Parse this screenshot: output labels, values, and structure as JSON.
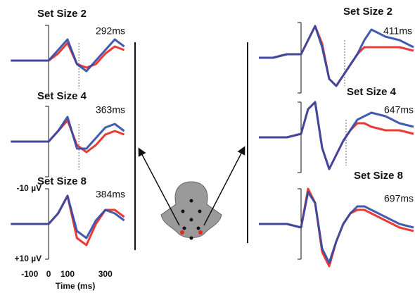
{
  "chart_data": [
    {
      "type": "line",
      "title": "Set Size 2",
      "annotation": "292ms",
      "reference_line": 160,
      "x": [
        -200,
        -150,
        -100,
        -50,
        0,
        50,
        100,
        150,
        200,
        250,
        300,
        350,
        400
      ],
      "series": [
        {
          "color": "#e8261f",
          "values": [
            0,
            0,
            0,
            0,
            0,
            -2,
            -5,
            1,
            2,
            1,
            -2,
            -4,
            -3
          ]
        },
        {
          "color": "#2e49a8",
          "values": [
            0,
            0,
            0,
            0,
            0,
            -3,
            -6,
            1,
            3,
            0,
            -3,
            -6,
            -4
          ]
        }
      ],
      "xlim": [
        -220,
        420
      ],
      "ylim": [
        10,
        -10
      ]
    },
    {
      "type": "line",
      "title": "Set Size 4",
      "annotation": "363ms",
      "reference_line": 160,
      "x": [
        -200,
        -150,
        -100,
        -50,
        0,
        50,
        100,
        150,
        200,
        250,
        300,
        350,
        400
      ],
      "series": [
        {
          "color": "#e8261f",
          "values": [
            0,
            0,
            0,
            0,
            0,
            -3,
            -6,
            1,
            3,
            1,
            -2,
            -3,
            -2
          ]
        },
        {
          "color": "#2e49a8",
          "values": [
            0,
            0,
            0,
            0,
            0,
            -3,
            -7,
            2,
            2,
            -1,
            -4,
            -5,
            -3
          ]
        }
      ],
      "xlim": [
        -220,
        420
      ],
      "ylim": [
        10,
        -10
      ]
    },
    {
      "type": "line",
      "title": "Set Size 8",
      "annotation": "384ms",
      "x": [
        -200,
        -150,
        -100,
        -50,
        0,
        50,
        100,
        150,
        200,
        250,
        300,
        350,
        400
      ],
      "series": [
        {
          "color": "#e8261f",
          "values": [
            0,
            0,
            0,
            0,
            0,
            -3,
            -8,
            4,
            6,
            0,
            -4,
            -4,
            -2
          ]
        },
        {
          "color": "#2e49a8",
          "values": [
            0,
            0,
            0,
            0,
            0,
            -3,
            -8,
            2,
            4,
            -1,
            -4,
            -3,
            -1
          ]
        }
      ],
      "xlim": [
        -220,
        420
      ],
      "ylim": [
        10,
        -10
      ],
      "xticks": [
        -100,
        0,
        100,
        300
      ],
      "xlabel": "Time (ms)",
      "yticks": [
        {
          "value": -10,
          "label": "-10 µV"
        },
        {
          "value": 10,
          "label": "+10 µV"
        }
      ]
    },
    {
      "type": "line",
      "title": "Set Size 2",
      "annotation": "411ms",
      "reference_line": 310,
      "x": [
        -300,
        -200,
        -100,
        0,
        50,
        100,
        150,
        200,
        250,
        300,
        350,
        400,
        450,
        500,
        600,
        700,
        800
      ],
      "series": [
        {
          "color": "#e8261f",
          "values": [
            0,
            0,
            -1,
            -1,
            -5,
            -9,
            -4,
            6,
            8,
            5,
            2,
            -1,
            -3,
            -3,
            -3,
            -3,
            -2
          ]
        },
        {
          "color": "#2e49a8",
          "values": [
            0,
            0,
            -1,
            -1,
            -5,
            -9,
            -3,
            6,
            8,
            5,
            2,
            -1,
            -5,
            -8,
            -6,
            -5,
            -3
          ]
        }
      ],
      "xlim": [
        -300,
        800
      ],
      "ylim": [
        10,
        -10
      ]
    },
    {
      "type": "line",
      "title": "Set Size 4",
      "annotation": "647ms",
      "reference_line": 320,
      "x": [
        -300,
        -200,
        -100,
        0,
        50,
        100,
        150,
        200,
        250,
        300,
        350,
        400,
        450,
        500,
        600,
        700,
        800
      ],
      "series": [
        {
          "color": "#e8261f",
          "values": [
            0,
            0,
            0,
            -1,
            -8,
            -10,
            3,
            9,
            5,
            1,
            -2,
            -4,
            -4,
            -3,
            -2,
            -2,
            -1
          ]
        },
        {
          "color": "#2e49a8",
          "values": [
            0,
            0,
            0,
            -1,
            -8,
            -10,
            3,
            9,
            5,
            1,
            -2,
            -5,
            -6,
            -7,
            -6,
            -4,
            -3
          ]
        }
      ],
      "xlim": [
        -300,
        800
      ],
      "ylim": [
        10,
        -10
      ]
    },
    {
      "type": "line",
      "title": "Set Size 8",
      "annotation": "697ms",
      "x": [
        -300,
        -200,
        -100,
        0,
        50,
        100,
        150,
        200,
        250,
        300,
        350,
        400,
        450,
        500,
        600,
        700,
        800
      ],
      "series": [
        {
          "color": "#e8261f",
          "values": [
            0,
            0,
            0,
            1,
            -10,
            -6,
            8,
            12,
            5,
            0,
            -3,
            -4,
            -4,
            -3,
            -1,
            1,
            2
          ]
        },
        {
          "color": "#2e49a8",
          "values": [
            0,
            0,
            0,
            1,
            -9,
            -6,
            7,
            11,
            5,
            0,
            -3,
            -5,
            -5,
            -4,
            -2,
            0,
            1
          ]
        }
      ],
      "xlim": [
        -300,
        800
      ],
      "ylim": [
        10,
        -10
      ]
    }
  ]
}
